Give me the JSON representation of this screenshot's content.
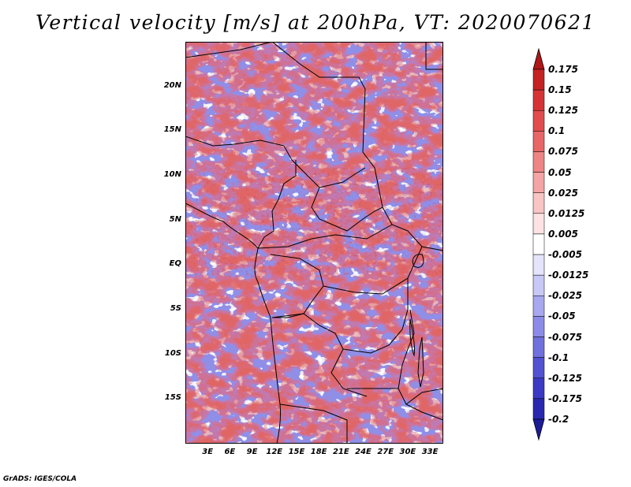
{
  "title": "Vertical velocity [m/s] at 200hPa, VT: 2020070621",
  "credit": "GrADS: IGES/COLA",
  "map": {
    "lat_labels": [
      "20N",
      "15N",
      "10N",
      "5N",
      "EQ",
      "5S",
      "10S",
      "15S"
    ],
    "lat_values": [
      20,
      15,
      10,
      5,
      0,
      -5,
      -10,
      -15
    ],
    "lon_labels": [
      "3E",
      "6E",
      "9E",
      "12E",
      "15E",
      "18E",
      "21E",
      "24E",
      "27E",
      "30E",
      "33E"
    ],
    "lon_values": [
      3,
      6,
      9,
      12,
      15,
      18,
      21,
      24,
      27,
      30,
      33
    ],
    "lon_range": [
      0,
      34.8
    ],
    "lat_range": [
      -20,
      25
    ]
  },
  "colorbar": {
    "labels": [
      "0.175",
      "0.15",
      "0.125",
      "0.1",
      "0.075",
      "0.05",
      "0.025",
      "0.0125",
      "0.005",
      "-0.005",
      "-0.0125",
      "-0.025",
      "-0.05",
      "-0.075",
      "-0.1",
      "-0.125",
      "-0.175",
      "-0.2"
    ],
    "colors": [
      "#b01818",
      "#c52222",
      "#d63434",
      "#e24c4c",
      "#e86666",
      "#ee8484",
      "#f4a4a4",
      "#f8c4c4",
      "#fce2e2",
      "#ffffff",
      "#e4e4fb",
      "#c8c8f6",
      "#a8a8f0",
      "#8c8ce8",
      "#7070de",
      "#5252d2",
      "#3a3ac4",
      "#2828b0",
      "#1c1c98"
    ]
  }
}
